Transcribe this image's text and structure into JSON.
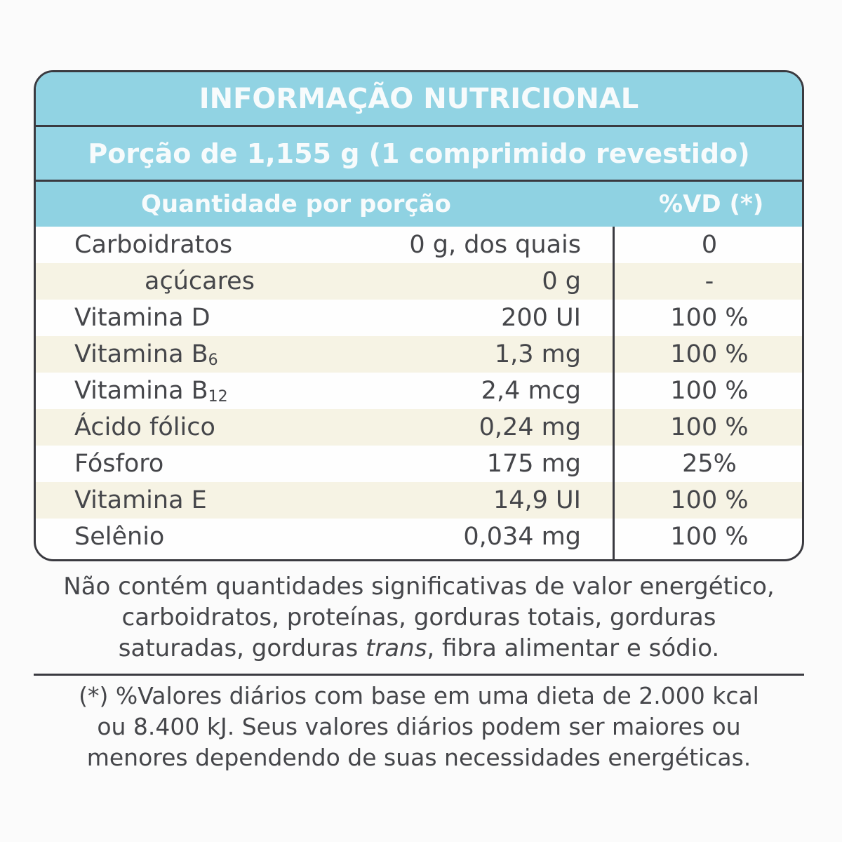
{
  "label": {
    "title": "INFORMAÇÃO NUTRICIONAL",
    "portion": "Porção de 1,155 g (1 comprimido revestido)",
    "column_quantity": "Quantidade por porção",
    "column_vd": "%VD (*)",
    "colors": {
      "header_band": "#8fd2e2",
      "header_text": "#f7fbfc",
      "row_shade": "#f6f3e4",
      "border": "#3a3a40",
      "body_text": "#45464a"
    }
  },
  "rows": [
    {
      "name": "Carboidratos",
      "sub": "",
      "amount": "0 g, dos quais",
      "vd": "0"
    },
    {
      "name": "açúcares",
      "sub": "",
      "amount": "0 g",
      "vd": "-"
    },
    {
      "name": "Vitamina D",
      "sub": "",
      "amount": "200 UI",
      "vd": "100 %"
    },
    {
      "name": "Vitamina B",
      "sub": "6",
      "amount": "1,3 mg",
      "vd": "100 %"
    },
    {
      "name": "Vitamina B",
      "sub": "12",
      "amount": "2,4 mcg",
      "vd": "100 %"
    },
    {
      "name": "Ácido fólico",
      "sub": "",
      "amount": "0,24 mg",
      "vd": "100 %"
    },
    {
      "name": "Fósforo",
      "sub": "",
      "amount": "175 mg",
      "vd": "25%"
    },
    {
      "name": "Vitamina E",
      "sub": "",
      "amount": "14,9 UI",
      "vd": "100 %"
    },
    {
      "name": "Selênio",
      "sub": "",
      "amount": "0,034 mg",
      "vd": "100 %"
    }
  ],
  "note": {
    "line1": "Não contém quantidades significativas de valor energético,",
    "line2": "carboidratos, proteínas, gorduras totais, gorduras",
    "line3_start": "saturadas, gorduras ",
    "line3_italic": "trans",
    "line3_end": ", fibra alimentar e sódio."
  },
  "footnote": {
    "line1": "(*) %Valores diários com base em uma dieta de 2.000 kcal",
    "line2": "ou 8.400 kJ. Seus valores diários podem ser maiores ou",
    "line3": "menores dependendo de suas necessidades energéticas."
  }
}
